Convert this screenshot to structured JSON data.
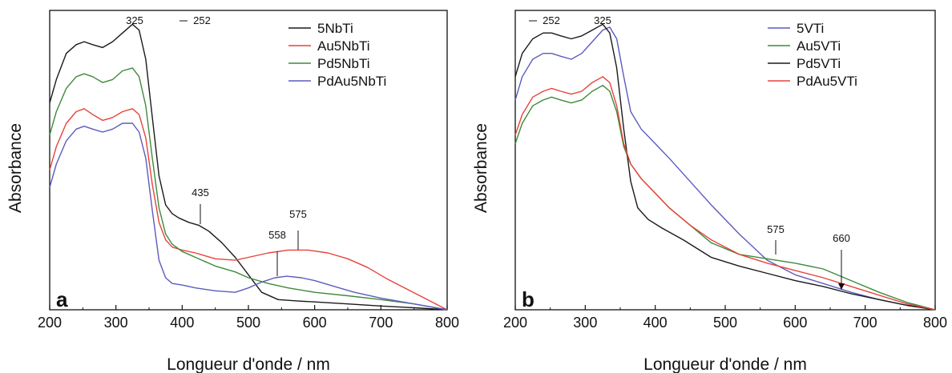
{
  "chart_data": [
    {
      "type": "line",
      "panel_label": "a",
      "xlabel": "Longueur d'onde / nm",
      "ylabel": "Absorbance",
      "xlim": [
        200,
        800
      ],
      "ylim": [
        0,
        1
      ],
      "xticks": [
        "200",
        "300",
        "400",
        "500",
        "600",
        "700",
        "800"
      ],
      "legend_position": "top-right",
      "series": [
        {
          "name": "5NbTi",
          "color": "#1a1a1a",
          "x": [
            200,
            210,
            225,
            240,
            252,
            265,
            280,
            295,
            310,
            325,
            335,
            345,
            355,
            365,
            375,
            385,
            395,
            410,
            425,
            440,
            460,
            480,
            500,
            520,
            545,
            575,
            600,
            650,
            700,
            750,
            800
          ],
          "y": [
            0.71,
            0.79,
            0.88,
            0.91,
            0.92,
            0.91,
            0.9,
            0.92,
            0.95,
            0.98,
            0.96,
            0.86,
            0.66,
            0.46,
            0.36,
            0.33,
            0.315,
            0.3,
            0.29,
            0.27,
            0.23,
            0.18,
            0.12,
            0.06,
            0.035,
            0.03,
            0.027,
            0.02,
            0.013,
            0.007,
            0.0
          ]
        },
        {
          "name": "Au5NbTi",
          "color": "#e8433a",
          "x": [
            200,
            210,
            225,
            240,
            252,
            265,
            280,
            295,
            310,
            325,
            335,
            345,
            355,
            365,
            375,
            385,
            400,
            420,
            450,
            480,
            500,
            530,
            560,
            590,
            620,
            650,
            680,
            710,
            740,
            770,
            800
          ],
          "y": [
            0.48,
            0.56,
            0.64,
            0.68,
            0.69,
            0.67,
            0.65,
            0.66,
            0.68,
            0.69,
            0.67,
            0.59,
            0.43,
            0.3,
            0.24,
            0.215,
            0.205,
            0.195,
            0.175,
            0.17,
            0.18,
            0.195,
            0.205,
            0.205,
            0.195,
            0.175,
            0.145,
            0.105,
            0.07,
            0.035,
            0.0
          ]
        },
        {
          "name": "Pd5NbTi",
          "color": "#3e8a3b",
          "x": [
            200,
            210,
            225,
            240,
            252,
            265,
            280,
            295,
            310,
            325,
            335,
            345,
            355,
            365,
            375,
            385,
            400,
            420,
            450,
            480,
            500,
            530,
            560,
            600,
            650,
            700,
            750,
            800
          ],
          "y": [
            0.6,
            0.68,
            0.76,
            0.8,
            0.81,
            0.8,
            0.78,
            0.79,
            0.82,
            0.83,
            0.8,
            0.7,
            0.52,
            0.35,
            0.26,
            0.225,
            0.2,
            0.18,
            0.15,
            0.13,
            0.11,
            0.09,
            0.075,
            0.06,
            0.048,
            0.035,
            0.02,
            0.0
          ]
        },
        {
          "name": "PdAu5NbTi",
          "color": "#5b5bbf",
          "x": [
            200,
            210,
            225,
            240,
            252,
            265,
            280,
            295,
            310,
            325,
            335,
            345,
            355,
            365,
            375,
            385,
            400,
            420,
            450,
            480,
            500,
            520,
            540,
            558,
            580,
            600,
            630,
            660,
            700,
            750,
            800
          ],
          "y": [
            0.42,
            0.5,
            0.58,
            0.62,
            0.63,
            0.62,
            0.61,
            0.62,
            0.64,
            0.64,
            0.61,
            0.52,
            0.34,
            0.17,
            0.11,
            0.09,
            0.085,
            0.075,
            0.065,
            0.06,
            0.075,
            0.095,
            0.11,
            0.115,
            0.11,
            0.1,
            0.08,
            0.06,
            0.04,
            0.02,
            0.0
          ]
        }
      ],
      "annotations": [
        {
          "text": "252",
          "x": 252
        },
        {
          "text": "325",
          "x": 325
        },
        {
          "text": "435",
          "x": 435
        },
        {
          "text": "558",
          "x": 558
        },
        {
          "text": "575",
          "x": 575
        }
      ]
    },
    {
      "type": "line",
      "panel_label": "b",
      "xlabel": "Longueur d'onde / nm",
      "ylabel": "Absorbance",
      "xlim": [
        200,
        800
      ],
      "ylim": [
        0,
        1
      ],
      "xticks": [
        "200",
        "300",
        "400",
        "500",
        "600",
        "700",
        "800"
      ],
      "legend_position": "top-right",
      "series": [
        {
          "name": "5VTi",
          "color": "#5b5bbf",
          "x": [
            200,
            210,
            225,
            240,
            252,
            265,
            280,
            295,
            310,
            325,
            335,
            345,
            355,
            365,
            380,
            400,
            420,
            450,
            480,
            520,
            560,
            600,
            640,
            680,
            720,
            760,
            800
          ],
          "y": [
            0.72,
            0.8,
            0.86,
            0.88,
            0.88,
            0.87,
            0.86,
            0.88,
            0.92,
            0.96,
            0.97,
            0.93,
            0.8,
            0.68,
            0.62,
            0.57,
            0.52,
            0.44,
            0.36,
            0.26,
            0.17,
            0.12,
            0.09,
            0.06,
            0.035,
            0.015,
            0.0
          ]
        },
        {
          "name": "Au5VTi",
          "color": "#3e8a3b",
          "x": [
            200,
            210,
            225,
            240,
            252,
            265,
            280,
            295,
            310,
            325,
            335,
            345,
            355,
            365,
            380,
            400,
            420,
            450,
            480,
            520,
            560,
            600,
            640,
            680,
            720,
            760,
            800
          ],
          "y": [
            0.57,
            0.64,
            0.7,
            0.72,
            0.73,
            0.72,
            0.71,
            0.72,
            0.75,
            0.77,
            0.75,
            0.68,
            0.56,
            0.5,
            0.45,
            0.4,
            0.35,
            0.29,
            0.23,
            0.19,
            0.175,
            0.16,
            0.14,
            0.1,
            0.06,
            0.025,
            0.0
          ]
        },
        {
          "name": "Pd5VTi",
          "color": "#1a1a1a",
          "x": [
            200,
            210,
            225,
            240,
            252,
            265,
            280,
            295,
            310,
            325,
            335,
            345,
            355,
            365,
            375,
            390,
            410,
            440,
            480,
            520,
            560,
            600,
            640,
            680,
            720,
            760,
            800
          ],
          "y": [
            0.8,
            0.88,
            0.93,
            0.95,
            0.95,
            0.94,
            0.93,
            0.94,
            0.96,
            0.98,
            0.95,
            0.83,
            0.62,
            0.44,
            0.35,
            0.31,
            0.28,
            0.24,
            0.18,
            0.15,
            0.125,
            0.1,
            0.08,
            0.055,
            0.035,
            0.015,
            0.0
          ]
        },
        {
          "name": "PdAu5VTi",
          "color": "#e8433a",
          "x": [
            200,
            210,
            225,
            240,
            252,
            265,
            280,
            295,
            310,
            325,
            335,
            345,
            355,
            365,
            380,
            400,
            420,
            450,
            480,
            520,
            560,
            600,
            640,
            680,
            720,
            760,
            800
          ],
          "y": [
            0.6,
            0.67,
            0.73,
            0.75,
            0.76,
            0.75,
            0.74,
            0.75,
            0.78,
            0.8,
            0.78,
            0.7,
            0.57,
            0.5,
            0.45,
            0.4,
            0.35,
            0.29,
            0.24,
            0.19,
            0.16,
            0.135,
            0.11,
            0.08,
            0.05,
            0.02,
            0.0
          ]
        }
      ],
      "annotations": [
        {
          "text": "252",
          "x": 252
        },
        {
          "text": "325",
          "x": 325
        },
        {
          "text": "575",
          "x": 575
        },
        {
          "text": "660",
          "x": 660
        }
      ]
    }
  ]
}
